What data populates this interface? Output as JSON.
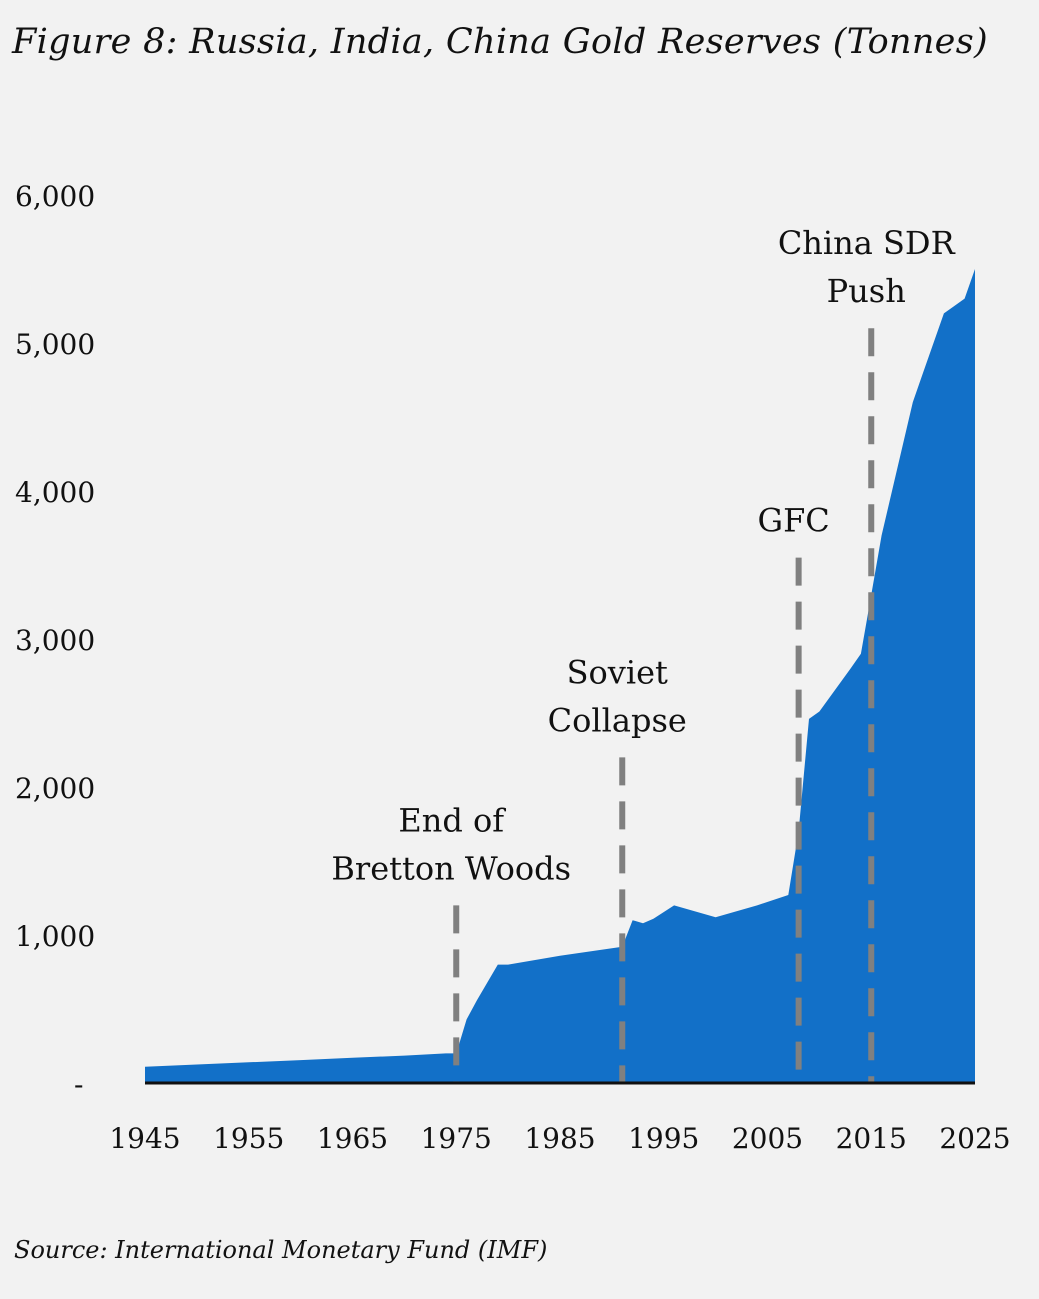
{
  "title": "Figure 8: Russia, India, China Gold Reserves (Tonnes)",
  "source": "Source: International Monetary Fund (IMF)",
  "colors": {
    "area": "#1270c8",
    "annotation_line": "#808080",
    "axis": "#111111",
    "background": "#f2f2f2"
  },
  "chart_data": {
    "type": "area",
    "title": "Figure 8: Russia, India, China Gold Reserves (Tonnes)",
    "xlabel": "",
    "ylabel": "",
    "xlim": [
      1945,
      2025
    ],
    "ylim": [
      0,
      6000
    ],
    "grid": false,
    "y_ticks": [
      {
        "value": 0,
        "label": "-"
      },
      {
        "value": 1000,
        "label": "1,000"
      },
      {
        "value": 2000,
        "label": "2,000"
      },
      {
        "value": 3000,
        "label": "3,000"
      },
      {
        "value": 4000,
        "label": "4,000"
      },
      {
        "value": 5000,
        "label": "5,000"
      },
      {
        "value": 6000,
        "label": "6,000"
      }
    ],
    "x_ticks": [
      {
        "value": 1945,
        "label": "1945"
      },
      {
        "value": 1955,
        "label": "1955"
      },
      {
        "value": 1965,
        "label": "1965"
      },
      {
        "value": 1975,
        "label": "1975"
      },
      {
        "value": 1985,
        "label": "1985"
      },
      {
        "value": 1995,
        "label": "1995"
      },
      {
        "value": 2005,
        "label": "2005"
      },
      {
        "value": 2015,
        "label": "2015"
      },
      {
        "value": 2025,
        "label": "2025"
      }
    ],
    "series": [
      {
        "x": [
          1945,
          1950,
          1955,
          1960,
          1965,
          1970,
          1974,
          1975,
          1976,
          1977,
          1978,
          1979,
          1980,
          1985,
          1990,
          1991,
          1992,
          1993,
          1994,
          1996,
          2000,
          2004,
          2007,
          2008,
          2009,
          2010,
          2013,
          2014,
          2015,
          2016,
          2017,
          2018,
          2019,
          2020,
          2021,
          2022,
          2023,
          2024,
          2025
        ],
        "y": [
          110,
          125,
          140,
          155,
          170,
          185,
          200,
          200,
          430,
          560,
          680,
          800,
          800,
          860,
          910,
          920,
          1100,
          1080,
          1110,
          1200,
          1120,
          1200,
          1270,
          1700,
          2460,
          2510,
          2800,
          2900,
          3300,
          3700,
          4000,
          4300,
          4600,
          4800,
          5000,
          5200,
          5250,
          5300,
          5500
        ]
      }
    ],
    "annotations": [
      {
        "x": 1975,
        "y_top": 1200,
        "lines": [
          "End of",
          "Bretton Woods"
        ]
      },
      {
        "x": 1991,
        "y_top": 2200,
        "lines": [
          "Soviet",
          "Collapse"
        ]
      },
      {
        "x": 2008,
        "y_top": 3550,
        "lines": [
          "GFC"
        ]
      },
      {
        "x": 2015,
        "y_top": 5100,
        "lines": [
          "China SDR",
          "Push"
        ]
      }
    ]
  }
}
